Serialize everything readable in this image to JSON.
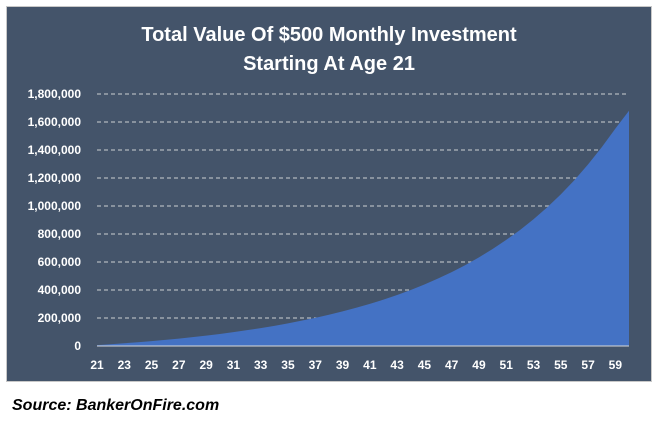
{
  "chart_data": {
    "type": "area",
    "title_lines": [
      "Total Value Of $500 Monthly Investment",
      "Starting  At Age 21"
    ],
    "xlabel": "",
    "ylabel": "",
    "x": [
      21,
      22,
      23,
      24,
      25,
      26,
      27,
      28,
      29,
      30,
      31,
      32,
      33,
      34,
      35,
      36,
      37,
      38,
      39,
      40,
      41,
      42,
      43,
      44,
      45,
      46,
      47,
      48,
      49,
      50,
      51,
      52,
      53,
      54,
      55,
      56,
      57,
      58,
      59,
      60
    ],
    "x_tick_labels": [
      "21",
      "23",
      "25",
      "27",
      "29",
      "31",
      "33",
      "35",
      "37",
      "39",
      "41",
      "43",
      "45",
      "47",
      "49",
      "51",
      "53",
      "55",
      "57",
      "59"
    ],
    "y_tick_labels": [
      "0",
      "200,000",
      "400,000",
      "600,000",
      "800,000",
      "1,000,000",
      "1,200,000",
      "1,400,000",
      "1,600,000",
      "1,800,000"
    ],
    "ylim": [
      0,
      1800000
    ],
    "grid": true,
    "series": [
      {
        "name": "Total Value",
        "color": "#4472c4",
        "values": [
          6000,
          12500,
          19500,
          27000,
          35000,
          43500,
          53000,
          63000,
          74000,
          86000,
          99000,
          113000,
          128000,
          144000,
          162000,
          181000,
          201000,
          223000,
          247000,
          273000,
          301000,
          331000,
          364000,
          400000,
          439000,
          482000,
          528000,
          578000,
          633000,
          693000,
          758000,
          828000,
          905000,
          990000,
          1083000,
          1185000,
          1297000,
          1420000,
          1553000,
          1680000
        ]
      }
    ],
    "colors": {
      "background": "#44546a",
      "grid": "#e6e6e6",
      "text": "#ffffff",
      "area": "#4472c4"
    }
  },
  "source_note": "Source: BankerOnFire.com"
}
